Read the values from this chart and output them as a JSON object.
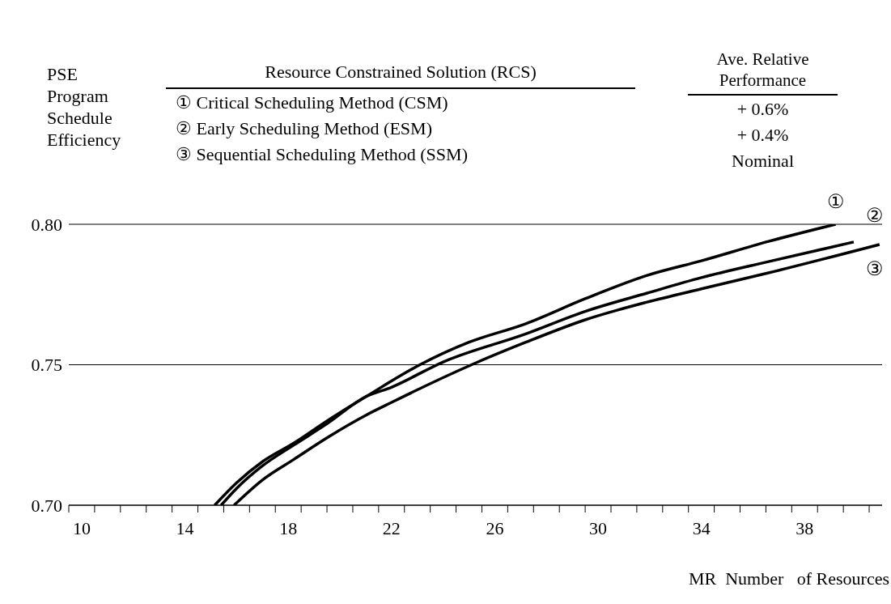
{
  "chart_data": {
    "type": "line",
    "ylabel": "PSE Program Schedule Efficiency",
    "xlabel": "MR  Number   of Resources",
    "grid": "y",
    "marker": "none",
    "line_style": "solid",
    "xlim": [
      9.5,
      41
    ],
    "ylim": [
      0.7,
      0.8
    ],
    "xticks": [
      {
        "value": 9.5,
        "label": null
      },
      10,
      {
        "value": 10.5,
        "label": null
      },
      {
        "value": 11.5,
        "label": null
      },
      {
        "value": 12.5,
        "label": null
      },
      {
        "value": 13.5,
        "label": null
      },
      14,
      {
        "value": 14.5,
        "label": null
      },
      {
        "value": 15.5,
        "label": null
      },
      {
        "value": 16.5,
        "label": null
      },
      {
        "value": 17.5,
        "label": null
      },
      18,
      {
        "value": 18.5,
        "label": null
      },
      {
        "value": 19.5,
        "label": null
      },
      {
        "value": 20.5,
        "label": null
      },
      {
        "value": 21.5,
        "label": null
      },
      22,
      {
        "value": 22.5,
        "label": null
      },
      {
        "value": 23.5,
        "label": null
      },
      {
        "value": 24.5,
        "label": null
      },
      {
        "value": 25.5,
        "label": null
      },
      26,
      {
        "value": 26.5,
        "label": null
      },
      {
        "value": 27.5,
        "label": null
      },
      {
        "value": 28.5,
        "label": null
      },
      {
        "value": 29.5,
        "label": null
      },
      30,
      {
        "value": 30.5,
        "label": null
      },
      {
        "value": 31.5,
        "label": null
      },
      {
        "value": 32.5,
        "label": null
      },
      {
        "value": 33.5,
        "label": null
      },
      34,
      {
        "value": 34.5,
        "label": null
      },
      {
        "value": 35.5,
        "label": null
      },
      {
        "value": 36.5,
        "label": null
      },
      {
        "value": 37.5,
        "label": null
      },
      38,
      {
        "value": 38.5,
        "label": null
      },
      {
        "value": 39.5,
        "label": null
      },
      {
        "value": 40.5,
        "label": null
      }
    ],
    "yticks": [
      {
        "value": 0.7,
        "label": "0.70"
      },
      {
        "value": 0.75,
        "label": "0.75"
      },
      {
        "value": 0.8,
        "label": "0.80"
      }
    ],
    "series": [
      {
        "name": "①",
        "color": "#000000",
        "x": [
          15.15,
          16,
          17,
          18.23,
          19.5,
          21,
          23.1,
          25,
          27.2,
          29.5,
          31.9,
          34,
          36.6,
          39.2
        ],
        "values": [
          0.7,
          0.708,
          0.7155,
          0.7222,
          0.73,
          0.7386,
          0.75,
          0.758,
          0.7646,
          0.7735,
          0.7818,
          0.787,
          0.7939,
          0.8
        ]
      },
      {
        "name": "②",
        "color": "#000000",
        "x": [
          15.4,
          16,
          17,
          18.23,
          19.5,
          21,
          22,
          24,
          27.2,
          29.5,
          31.9,
          34,
          36.6,
          39.9
        ],
        "values": [
          0.7,
          0.706,
          0.714,
          0.7215,
          0.729,
          0.7386,
          0.742,
          0.751,
          0.761,
          0.769,
          0.7755,
          0.781,
          0.7867,
          0.7937
        ]
      },
      {
        "name": "③",
        "color": "#000000",
        "x": [
          15.9,
          17,
          18.23,
          19.5,
          21,
          22,
          25.1,
          27.2,
          29.5,
          31.9,
          34,
          36.6,
          40.9
        ],
        "values": [
          0.7,
          0.709,
          0.7164,
          0.724,
          0.732,
          0.7366,
          0.75,
          0.758,
          0.766,
          0.7723,
          0.777,
          0.7827,
          0.7928
        ]
      }
    ],
    "annotations": [
      "Resource Constrained Solution (RCS)",
      "① Critical Scheduling Method (CSM)",
      "② Early Scheduling Method (ESM)",
      "③ Sequential Scheduling Method (SSM)",
      "Ave. Relative Performance",
      "+ 0.6%",
      "+ 0.4%",
      "Nominal"
    ]
  }
}
